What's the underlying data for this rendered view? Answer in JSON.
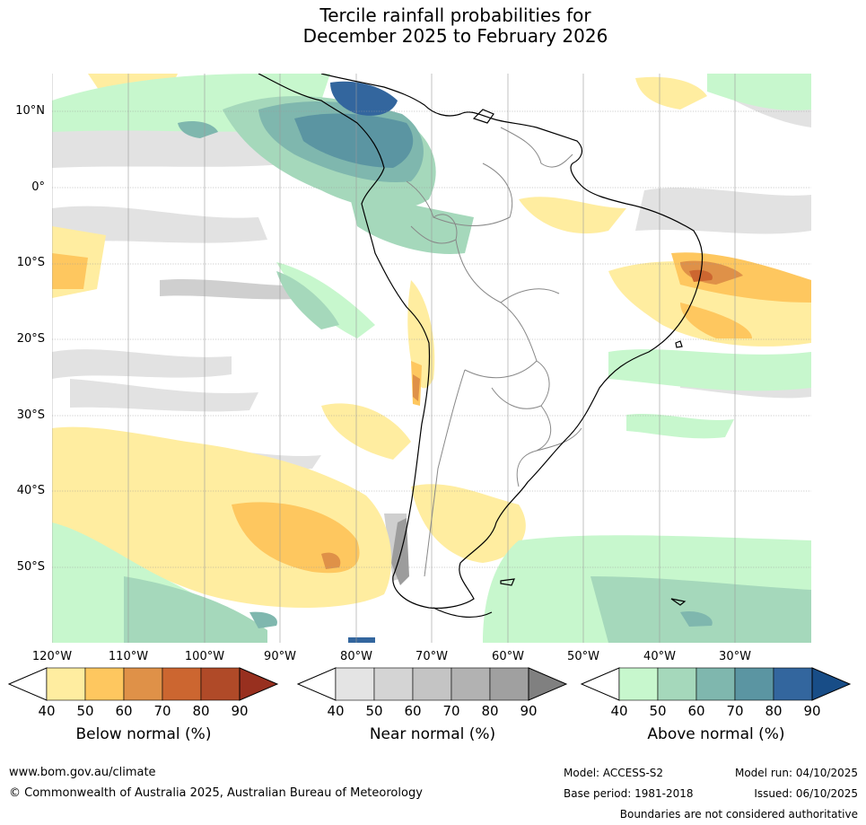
{
  "title": {
    "line1": "Tercile rainfall probabilities for",
    "line2": "December 2025 to February 2026"
  },
  "axes": {
    "lat_labels": [
      "10°N",
      "0°",
      "10°S",
      "20°S",
      "30°S",
      "40°S",
      "50°S"
    ],
    "lon_labels": [
      "120°W",
      "110°W",
      "100°W",
      "90°W",
      "80°W",
      "70°W",
      "60°W",
      "50°W",
      "40°W",
      "30°W"
    ]
  },
  "legends": [
    {
      "title": "Below normal (%)",
      "ticks": [
        "40",
        "50",
        "60",
        "70",
        "80",
        "90"
      ],
      "colors": [
        "#ffeda0",
        "#fec75f",
        "#df9148",
        "#cc6630",
        "#b04a28",
        "#98301f"
      ]
    },
    {
      "title": "Near normal (%)",
      "ticks": [
        "40",
        "50",
        "60",
        "70",
        "80",
        "90"
      ],
      "colors": [
        "#e4e4e4",
        "#d4d4d4",
        "#c4c4c4",
        "#b2b2b2",
        "#a0a0a0",
        "#808080"
      ]
    },
    {
      "title": "Above normal (%)",
      "ticks": [
        "40",
        "50",
        "60",
        "70",
        "80",
        "90"
      ],
      "colors": [
        "#c7f7cd",
        "#a5d8bb",
        "#7fb7ae",
        "#5b95a2",
        "#33669e",
        "#184d87"
      ]
    }
  ],
  "footer": {
    "url": "www.bom.gov.au/climate",
    "copyright": "© Commonwealth of Australia 2025, Australian Bureau of Meteorology",
    "model": "Model: ACCESS-S2",
    "base_period": "Base period: 1981-2018",
    "model_run": "Model run: 04/10/2025",
    "issued": "Issued: 06/10/2025",
    "disclaimer": "Boundaries are not considered authoritative"
  }
}
